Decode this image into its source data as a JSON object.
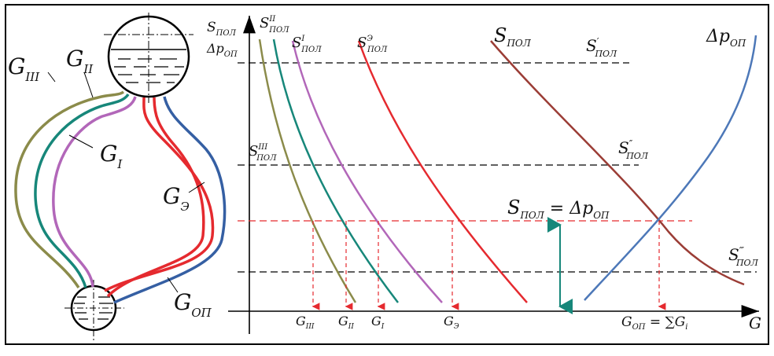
{
  "colors": {
    "frame": "#000000",
    "g3": "#8b8b4a",
    "g2": "#17877a",
    "g1": "#b267b9",
    "ge": "#e52a2f",
    "goa": "#355fa3",
    "s_pol_curve": "#9b3d36",
    "dp_curve": "#4d78b8",
    "drop_arrows": "#e52a2f",
    "delta_arrow": "#17877a",
    "dashed": "#000000"
  },
  "schematic": {
    "labels": {
      "g3": {
        "main": "G",
        "sub": "III"
      },
      "g2": {
        "main": "G",
        "sub": "II"
      },
      "g1": {
        "main": "G",
        "sub": "I"
      },
      "ge": {
        "main": "G",
        "sub": "Э"
      },
      "goa": {
        "main": "G",
        "sub": "ОП"
      }
    }
  },
  "chart": {
    "y_axis_label": {
      "main": "S",
      "sub": "ПОЛ"
    },
    "y_axis_label2": {
      "main": "Δp",
      "sub": "ОП"
    },
    "x_axis_label": "G",
    "curve_labels": {
      "s2": {
        "main": "S",
        "sup": "II",
        "sub": "ПОЛ"
      },
      "s1": {
        "main": "S",
        "sup": "I",
        "sub": "ПОЛ"
      },
      "se": {
        "main": "S",
        "sup": "Э",
        "sub": "ПОЛ"
      },
      "s3": {
        "main": "S",
        "sup": "III",
        "sub": "ПОЛ"
      },
      "spol": {
        "main": "S",
        "sub": "ПОЛ"
      },
      "dp": {
        "main": "Δp",
        "sub": "ОП"
      },
      "s_prime": {
        "main": "S",
        "sup": "′",
        "sub": "ПОЛ"
      },
      "s_dprime": {
        "main": "S",
        "sup": "″",
        "sub": "ПОЛ"
      },
      "s_tprime": {
        "main": "S",
        "sup": "‴",
        "sub": "ПОЛ"
      }
    },
    "equality_label": {
      "left_main": "S",
      "left_sub": "ПОЛ",
      "eq": " = ",
      "right_main": "Δp",
      "right_sub": "ОП"
    },
    "x_ticks": [
      {
        "main": "G",
        "sub": "III"
      },
      {
        "main": "G",
        "sub": "II"
      },
      {
        "main": "G",
        "sub": "I"
      },
      {
        "main": "G",
        "sub": "Э"
      }
    ],
    "sum_label": {
      "main": "G",
      "sub": "ОП",
      "rest": " = ∑G",
      "rest_sub": "i"
    }
  }
}
